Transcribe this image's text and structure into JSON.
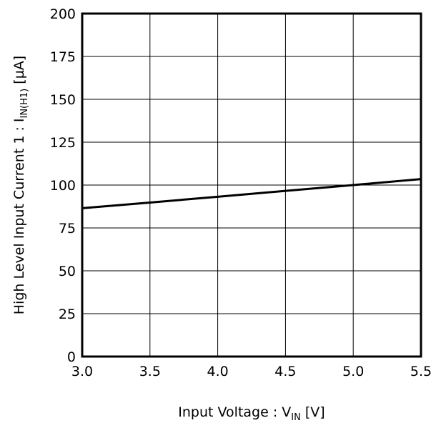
{
  "chart_data": {
    "type": "line",
    "xlabel": {
      "main": "Input Voltage : V",
      "sub": "IN",
      "tail": " [V]"
    },
    "ylabel": {
      "main": "High Level Input Current 1 : I",
      "sub": "IN(H1)",
      "tail": " [µA]"
    },
    "xlim": [
      3.0,
      5.5
    ],
    "ylim": [
      0,
      200
    ],
    "xticks": [
      "3.0",
      "3.5",
      "4.0",
      "4.5",
      "5.0",
      "5.5"
    ],
    "yticks": [
      "0",
      "25",
      "50",
      "75",
      "100",
      "125",
      "150",
      "175",
      "200"
    ],
    "grid": true,
    "series": [
      {
        "x": [
          3.0,
          3.5,
          4.0,
          4.5,
          5.0,
          5.5
        ],
        "y": [
          86.5,
          89.8,
          93.2,
          96.6,
          100.0,
          103.5
        ]
      }
    ]
  }
}
